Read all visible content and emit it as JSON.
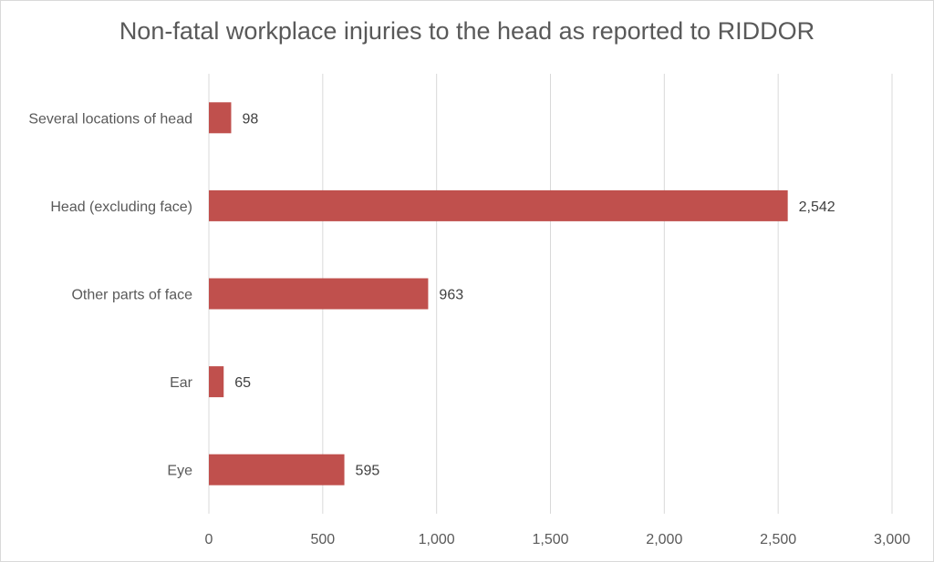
{
  "chart_data": {
    "type": "bar",
    "orientation": "horizontal",
    "title": "Non-fatal workplace injuries to the head as reported to RIDDOR",
    "categories": [
      "Eye",
      "Ear",
      "Other parts of face",
      "Head (excluding face)",
      "Several locations of head"
    ],
    "values": [
      595,
      65,
      963,
      2542,
      98
    ],
    "value_labels": [
      "595",
      "65",
      "963",
      "2,542",
      "98"
    ],
    "xlim": [
      0,
      3000
    ],
    "x_ticks": [
      0,
      500,
      1000,
      1500,
      2000,
      2500,
      3000
    ],
    "x_tick_labels": [
      "0",
      "500",
      "1,000",
      "1,500",
      "2,000",
      "2,500",
      "3,000"
    ],
    "xlabel": "",
    "ylabel": "",
    "grid": "vertical",
    "legend": "none",
    "bar_color": "#c0504d"
  }
}
